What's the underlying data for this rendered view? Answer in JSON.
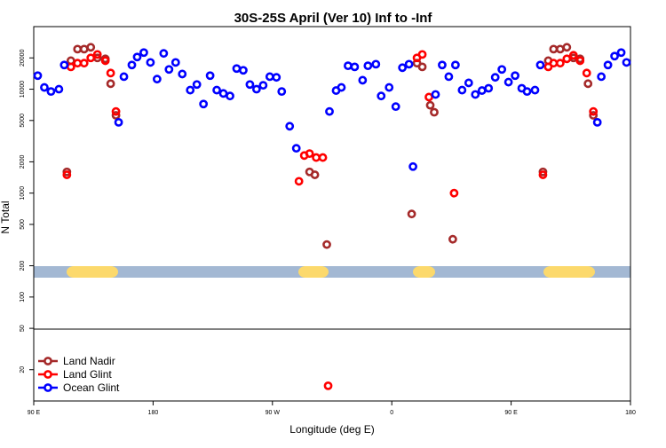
{
  "chart_data": {
    "type": "scatter",
    "title": "30S-25S April (Ver 10)   Inf to -Inf",
    "x_label": "Longitude (deg E)",
    "y_label": "N Total",
    "xlim": [
      90,
      540
    ],
    "xticks": [
      {
        "value": 90,
        "label": "90 E"
      },
      {
        "value": 180,
        "label": "180"
      },
      {
        "value": 270,
        "label": "90 W"
      },
      {
        "value": 360,
        "label": "0"
      },
      {
        "value": 450,
        "label": "90 E"
      },
      {
        "value": 540,
        "label": "180"
      }
    ],
    "ylim": [
      10,
      40000
    ],
    "y_scale": "log",
    "yticks": [
      20,
      50,
      100,
      200,
      500,
      1000,
      2000,
      5000,
      10000,
      20000
    ],
    "legend": "bottom left",
    "series": [
      {
        "name": "Land Nadir",
        "color": "#a52a2a",
        "x": [
          115,
          118,
          123,
          128,
          133,
          138,
          144,
          148,
          152,
          298,
          302,
          311,
          375,
          379,
          383,
          389,
          392,
          406,
          474,
          478,
          482,
          487,
          492,
          497,
          502,
          508,
          512
        ],
        "values": [
          1600,
          18800,
          24300,
          24300,
          25300,
          20000,
          19600,
          11300,
          5600,
          1600,
          1500,
          320,
          630,
          17800,
          16400,
          7000,
          6000,
          360,
          1600,
          18800,
          24300,
          24300,
          25300,
          20000,
          19600,
          11300,
          5600
        ]
      },
      {
        "name": "Land Glint",
        "color": "#ff0000",
        "x": [
          115,
          118,
          123,
          128,
          133,
          138,
          144,
          148,
          152,
          290,
          294,
          298,
          303,
          308,
          312,
          379,
          383,
          388,
          407,
          474,
          478,
          482,
          487,
          492,
          497,
          502,
          507,
          512
        ],
        "values": [
          1500,
          16400,
          17800,
          17800,
          20000,
          21600,
          18800,
          14300,
          6100,
          1300,
          2300,
          2400,
          2200,
          2200,
          14,
          20000,
          21600,
          8400,
          1000,
          1500,
          16400,
          17800,
          17800,
          19600,
          21200,
          18800,
          14300,
          6100
        ]
      },
      {
        "name": "Ocean Glint",
        "color": "#0000ff",
        "x": [
          93,
          98,
          103,
          109,
          113,
          154,
          158,
          164,
          168,
          173,
          178,
          183,
          188,
          192,
          197,
          202,
          208,
          213,
          218,
          223,
          228,
          233,
          238,
          243,
          248,
          253,
          258,
          263,
          268,
          273,
          277,
          283,
          288,
          313,
          318,
          322,
          327,
          332,
          338,
          342,
          348,
          352,
          358,
          363,
          368,
          373,
          376,
          393,
          398,
          403,
          408,
          413,
          418,
          423,
          428,
          433,
          438,
          443,
          448,
          453,
          458,
          462,
          468,
          472,
          515,
          518,
          523,
          528,
          533,
          537
        ],
        "values": [
          13500,
          10400,
          9500,
          10000,
          17100,
          4800,
          13200,
          17100,
          20400,
          22500,
          18100,
          12500,
          22100,
          15500,
          18100,
          14000,
          9800,
          11100,
          7200,
          13500,
          9800,
          9100,
          8600,
          15800,
          15200,
          11100,
          10000,
          10900,
          13200,
          13000,
          9500,
          4400,
          2700,
          6100,
          9700,
          10400,
          16800,
          16400,
          12200,
          16800,
          17400,
          8600,
          10400,
          6800,
          16100,
          17400,
          1800,
          8900,
          17100,
          13200,
          17100,
          9800,
          11500,
          8900,
          9700,
          10200,
          13000,
          15500,
          11700,
          13500,
          10200,
          9500,
          9800,
          17100,
          4800,
          13200,
          17100,
          20800,
          22500,
          18100
        ]
      }
    ]
  }
}
